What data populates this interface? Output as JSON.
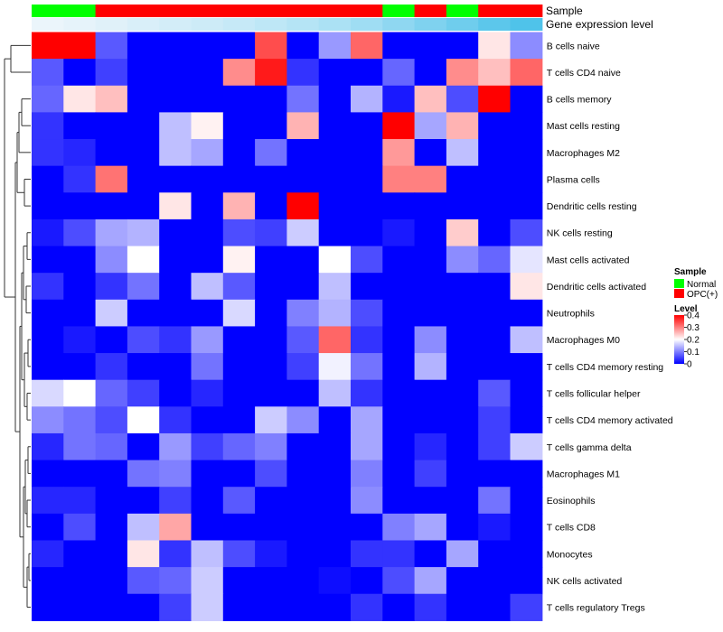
{
  "chart_data": {
    "type": "heatmap",
    "title": "",
    "colors": {
      "low": "#0000FF",
      "mid": "#FFFFFF",
      "high": "#FF0000",
      "normal": "#00FF00",
      "opc": "#FF0000",
      "expr_low": "#EEF6FB",
      "expr_high": "#4FC3EA",
      "dendrogram": "#333333"
    },
    "annotations": {
      "sample_label": "Sample",
      "expression_label": "Gene expression level",
      "sample_groups": [
        "Normal",
        "Normal",
        "OPC(+)",
        "OPC(+)",
        "OPC(+)",
        "OPC(+)",
        "OPC(+)",
        "OPC(+)",
        "OPC(+)",
        "OPC(+)",
        "OPC(+)",
        "Normal",
        "OPC(+)",
        "Normal",
        "OPC(+)",
        "OPC(+)"
      ],
      "expression_levels": [
        0.02,
        0.05,
        0.09,
        0.13,
        0.17,
        0.21,
        0.25,
        0.3,
        0.36,
        0.42,
        0.5,
        0.6,
        0.7,
        0.8,
        0.92,
        1.0
      ]
    },
    "legend": {
      "sample_title": "Sample",
      "sample_items": [
        "Normal",
        "OPC(+)"
      ],
      "level_title": "Level",
      "level_ticks": [
        "0.4",
        "0.3",
        "0.2",
        "0.1",
        "0"
      ],
      "level_range": [
        0,
        0.4
      ]
    },
    "rows": [
      "B cells naive",
      "T cells CD4 naive",
      "B cells memory",
      "Mast cells resting",
      "Macrophages M2",
      "Plasma cells",
      "Dendritic cells resting",
      "NK cells resting",
      "Mast cells activated",
      "Dendritic cells activated",
      "Neutrophils",
      "Macrophages M0",
      "T cells CD4 memory resting",
      "T cells follicular helper",
      "T cells CD4 memory activated",
      "T cells gamma delta",
      "Macrophages M1",
      "Eosinophils",
      "T cells CD8",
      "Monocytes",
      "NK cells activated",
      "T cells regulatory  Tregs"
    ],
    "values": [
      [
        0.4,
        0.4,
        0.07,
        0,
        0,
        0,
        0,
        0.34,
        0,
        0.12,
        0.32,
        0,
        0,
        0,
        0.22,
        0.11
      ],
      [
        0.07,
        0,
        0.05,
        0,
        0,
        0,
        0.29,
        0.38,
        0.04,
        0,
        0,
        0.08,
        0,
        0.29,
        0.25,
        0.32
      ],
      [
        0.08,
        0.22,
        0.25,
        0,
        0,
        0,
        0,
        0,
        0.09,
        0,
        0.14,
        0.02,
        0.25,
        0.06,
        0.4,
        0
      ],
      [
        0.04,
        0,
        0,
        0,
        0.15,
        0.21,
        0,
        0,
        0.26,
        0,
        0,
        0.4,
        0.13,
        0.26,
        0,
        0
      ],
      [
        0.04,
        0.03,
        0,
        0,
        0.15,
        0.13,
        0,
        0.09,
        0,
        0,
        0,
        0.28,
        0,
        0.15,
        0,
        0
      ],
      [
        0,
        0.04,
        0.31,
        0,
        0,
        0,
        0,
        0,
        0,
        0,
        0,
        0.3,
        0.3,
        0,
        0,
        0
      ],
      [
        0,
        0,
        0,
        0,
        0.22,
        0,
        0.26,
        0,
        0.4,
        0,
        0,
        0,
        0,
        0,
        0,
        0
      ],
      [
        0.02,
        0.06,
        0.13,
        0.14,
        0,
        0,
        0.06,
        0.05,
        0.16,
        0,
        0,
        0.02,
        0,
        0.24,
        0,
        0.06
      ],
      [
        0,
        0,
        0.11,
        0.2,
        0,
        0,
        0.21,
        0,
        0,
        0.2,
        0.06,
        0,
        0,
        0.11,
        0.08,
        0.18
      ],
      [
        0.04,
        0,
        0.04,
        0.09,
        0,
        0.15,
        0.07,
        0,
        0,
        0.15,
        0,
        0,
        0,
        0,
        0,
        0.22
      ],
      [
        0,
        0,
        0.16,
        0,
        0,
        0,
        0.17,
        0,
        0.1,
        0.14,
        0.06,
        0,
        0,
        0,
        0,
        0
      ],
      [
        0,
        0.02,
        0,
        0.06,
        0.04,
        0.12,
        0,
        0,
        0.07,
        0.32,
        0.04,
        0,
        0.11,
        0,
        0,
        0.15
      ],
      [
        0,
        0,
        0.04,
        0,
        0,
        0.09,
        0,
        0,
        0.05,
        0.19,
        0.09,
        0,
        0.14,
        0,
        0,
        0
      ],
      [
        0.17,
        0.2,
        0.08,
        0.05,
        0,
        0.03,
        0,
        0,
        0,
        0.15,
        0.04,
        0,
        0,
        0,
        0.07,
        0
      ],
      [
        0.11,
        0.09,
        0.06,
        0.2,
        0.04,
        0,
        0,
        0.16,
        0.11,
        0,
        0.13,
        0,
        0,
        0,
        0.05,
        0
      ],
      [
        0.03,
        0.09,
        0.08,
        0,
        0.12,
        0.05,
        0.08,
        0.1,
        0,
        0,
        0.13,
        0,
        0.03,
        0,
        0.05,
        0.16
      ],
      [
        0,
        0,
        0,
        0.09,
        0.1,
        0,
        0,
        0.06,
        0,
        0,
        0.1,
        0,
        0.05,
        0,
        0,
        0
      ],
      [
        0.03,
        0.03,
        0,
        0,
        0.05,
        0,
        0.07,
        0,
        0,
        0,
        0.11,
        0,
        0,
        0,
        0.09,
        0
      ],
      [
        0,
        0.06,
        0,
        0.15,
        0.27,
        0,
        0,
        0,
        0,
        0,
        0,
        0.1,
        0.13,
        0,
        0.02,
        0
      ],
      [
        0.03,
        0,
        0,
        0.22,
        0.04,
        0.15,
        0.06,
        0.02,
        0,
        0,
        0.04,
        0.04,
        0,
        0.13,
        0,
        0
      ],
      [
        0,
        0,
        0,
        0.07,
        0.08,
        0.16,
        0,
        0,
        0,
        0.01,
        0,
        0.06,
        0.13,
        0,
        0,
        0
      ],
      [
        0,
        0,
        0,
        0,
        0.05,
        0.16,
        0,
        0,
        0,
        0,
        0.04,
        0,
        0.04,
        0,
        0,
        0.05
      ]
    ]
  }
}
